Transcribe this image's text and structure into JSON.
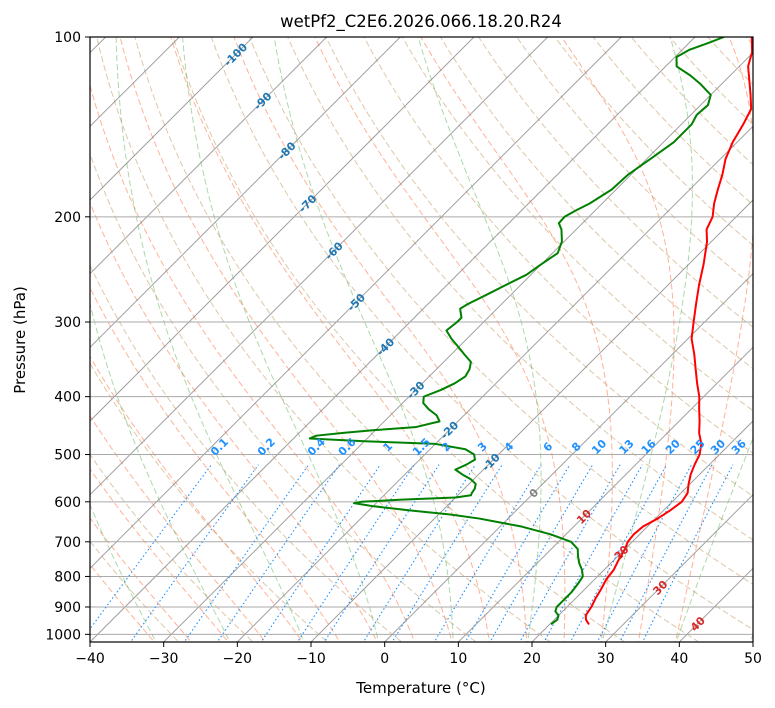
{
  "chart_data": {
    "type": "skew-t",
    "title": "wetPf2_C2E6.2026.066.18.20.R24",
    "xlabel": "Temperature (°C)",
    "ylabel": "Pressure (hPa)",
    "xlim": [
      -40,
      50
    ],
    "ylim": [
      1030,
      100
    ],
    "y_scale": "log",
    "grid": true,
    "x_ticks": [
      -40,
      -30,
      -20,
      -10,
      0,
      10,
      20,
      30,
      40,
      50
    ],
    "x_tick_labels": [
      "−40",
      "−30",
      "−20",
      "−10",
      "0",
      "10",
      "20",
      "30",
      "40",
      "50"
    ],
    "y_ticks": [
      100,
      200,
      300,
      400,
      500,
      600,
      700,
      800,
      900,
      1000
    ],
    "y_tick_labels": [
      "100",
      "200",
      "300",
      "400",
      "500",
      "600",
      "700",
      "800",
      "900",
      "1000"
    ],
    "series": [
      {
        "kind": "temperature",
        "color": "#ff0000",
        "points": [
          [
            960,
            25.2
          ],
          [
            945,
            24.3
          ],
          [
            930,
            23.7
          ],
          [
            900,
            23.3
          ],
          [
            870,
            22.7
          ],
          [
            840,
            22.2
          ],
          [
            810,
            21.6
          ],
          [
            780,
            21.3
          ],
          [
            750,
            20.6
          ],
          [
            720,
            20.0
          ],
          [
            700,
            19.4
          ],
          [
            680,
            19.2
          ],
          [
            660,
            19.4
          ],
          [
            640,
            20.3
          ],
          [
            620,
            20.9
          ],
          [
            600,
            21.3
          ],
          [
            580,
            20.9
          ],
          [
            560,
            19.8
          ],
          [
            540,
            18.8
          ],
          [
            520,
            18.0
          ],
          [
            500,
            17.3
          ],
          [
            480,
            16.1
          ],
          [
            460,
            14.3
          ],
          [
            440,
            12.8
          ],
          [
            420,
            11.1
          ],
          [
            400,
            9.4
          ],
          [
            380,
            7.3
          ],
          [
            360,
            5.2
          ],
          [
            340,
            3.0
          ],
          [
            320,
            0.5
          ],
          [
            300,
            -1.5
          ],
          [
            280,
            -3.6
          ],
          [
            260,
            -5.8
          ],
          [
            240,
            -8.0
          ],
          [
            220,
            -10.6
          ],
          [
            210,
            -12.3
          ],
          [
            200,
            -13.2
          ],
          [
            190,
            -14.8
          ],
          [
            180,
            -16.2
          ],
          [
            170,
            -17.6
          ],
          [
            160,
            -19.3
          ],
          [
            150,
            -20.6
          ],
          [
            140,
            -21.6
          ],
          [
            132,
            -22.6
          ],
          [
            125,
            -24.6
          ],
          [
            118,
            -26.8
          ],
          [
            112,
            -28.8
          ],
          [
            106,
            -30.2
          ],
          [
            100,
            -32.3
          ]
        ]
      },
      {
        "kind": "dewpoint",
        "color": "#008000",
        "points": [
          [
            960,
            20.2
          ],
          [
            945,
            20.4
          ],
          [
            930,
            20.0
          ],
          [
            915,
            19.0
          ],
          [
            900,
            18.6
          ],
          [
            880,
            18.6
          ],
          [
            850,
            18.6
          ],
          [
            820,
            18.3
          ],
          [
            800,
            18.0
          ],
          [
            780,
            17.0
          ],
          [
            760,
            15.7
          ],
          [
            740,
            14.6
          ],
          [
            720,
            13.6
          ],
          [
            700,
            11.7
          ],
          [
            680,
            7.9
          ],
          [
            660,
            2.9
          ],
          [
            640,
            -3.9
          ],
          [
            630,
            -8.4
          ],
          [
            620,
            -14.5
          ],
          [
            610,
            -20.1
          ],
          [
            603,
            -23.0
          ],
          [
            600,
            -22.2
          ],
          [
            595,
            -17.0
          ],
          [
            590,
            -10.0
          ],
          [
            585,
            -8.2
          ],
          [
            580,
            -8.4
          ],
          [
            570,
            -8.6
          ],
          [
            560,
            -9.1
          ],
          [
            550,
            -10.4
          ],
          [
            540,
            -12.2
          ],
          [
            530,
            -13.8
          ],
          [
            520,
            -13.0
          ],
          [
            510,
            -12.5
          ],
          [
            500,
            -13.3
          ],
          [
            490,
            -15.2
          ],
          [
            480,
            -20.0
          ],
          [
            475,
            -30.0
          ],
          [
            470,
            -37.8
          ],
          [
            465,
            -37.3
          ],
          [
            460,
            -34.0
          ],
          [
            455,
            -30.0
          ],
          [
            450,
            -25.0
          ],
          [
            440,
            -22.5
          ],
          [
            430,
            -23.7
          ],
          [
            420,
            -25.6
          ],
          [
            410,
            -27.2
          ],
          [
            400,
            -28.0
          ],
          [
            390,
            -26.6
          ],
          [
            380,
            -25.6
          ],
          [
            370,
            -25.1
          ],
          [
            360,
            -25.5
          ],
          [
            350,
            -26.3
          ],
          [
            340,
            -28.2
          ],
          [
            330,
            -30.1
          ],
          [
            320,
            -32.1
          ],
          [
            310,
            -33.9
          ],
          [
            300,
            -33.6
          ],
          [
            295,
            -33.6
          ],
          [
            290,
            -34.3
          ],
          [
            285,
            -35.0
          ],
          [
            280,
            -34.6
          ],
          [
            270,
            -33.3
          ],
          [
            260,
            -32.0
          ],
          [
            250,
            -30.6
          ],
          [
            240,
            -30.0
          ],
          [
            230,
            -29.3
          ],
          [
            220,
            -30.3
          ],
          [
            210,
            -32.0
          ],
          [
            205,
            -33.2
          ],
          [
            200,
            -33.3
          ],
          [
            195,
            -32.6
          ],
          [
            190,
            -31.7
          ],
          [
            180,
            -30.6
          ],
          [
            170,
            -30.4
          ],
          [
            160,
            -29.5
          ],
          [
            150,
            -28.6
          ],
          [
            140,
            -28.6
          ],
          [
            135,
            -29.2
          ],
          [
            130,
            -29.0
          ],
          [
            125,
            -30.0
          ],
          [
            120,
            -32.8
          ],
          [
            116,
            -35.4
          ],
          [
            112,
            -38.5
          ],
          [
            108,
            -39.8
          ],
          [
            105,
            -39.0
          ],
          [
            102,
            -37.2
          ],
          [
            100,
            -36.1
          ]
        ]
      }
    ],
    "reference_lines": {
      "dry_adiabats_color": "#d2b48c",
      "moist_adiabats_color": "#ff7f50",
      "mixing_ratio_color": "#1e90ff",
      "isotherm_color": "#808080",
      "pressure_grid_color": "#aaaaaa",
      "wet_bulb_color": "#2ca02c"
    },
    "mixing_ratio_labels": [
      "0.1",
      "0.2",
      "0.4",
      "0.6",
      "1",
      "1.5",
      "2",
      "3",
      "4",
      "6",
      "8",
      "10",
      "13",
      "16",
      "20",
      "25",
      "30",
      "36"
    ],
    "isotherm_labels": [
      {
        "text": "-100",
        "color": "#1f77b4"
      },
      {
        "text": "-90",
        "color": "#1f77b4"
      },
      {
        "text": "-80",
        "color": "#1f77b4"
      },
      {
        "text": "-70",
        "color": "#1f77b4"
      },
      {
        "text": "-60",
        "color": "#1f77b4"
      },
      {
        "text": "-50",
        "color": "#1f77b4"
      },
      {
        "text": "-40",
        "color": "#1f77b4"
      },
      {
        "text": "-30",
        "color": "#1f77b4"
      },
      {
        "text": "-20",
        "color": "#1f77b4"
      },
      {
        "text": "-10",
        "color": "#1f77b4"
      },
      {
        "text": "0",
        "color": "#808080"
      },
      {
        "text": "10",
        "color": "#d62728"
      },
      {
        "text": "20",
        "color": "#d62728"
      },
      {
        "text": "30",
        "color": "#d62728"
      },
      {
        "text": "40",
        "color": "#d62728"
      }
    ]
  }
}
